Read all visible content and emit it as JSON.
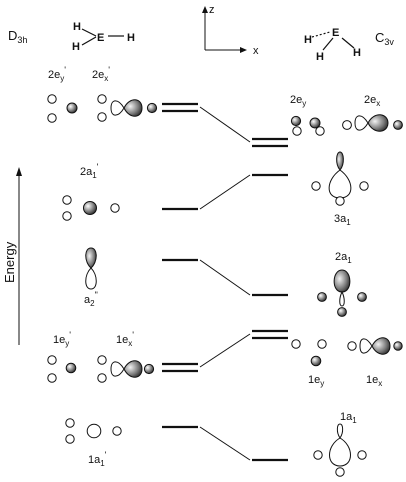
{
  "left_point_group": {
    "main": "D",
    "sub": "3h"
  },
  "right_point_group": {
    "main": "C",
    "sub": "3v"
  },
  "atoms": {
    "h": "H",
    "e": "E"
  },
  "axes": {
    "z": "z",
    "x": "x"
  },
  "energy_label": "Energy",
  "left_labels": {
    "e2_y": {
      "main": "2e",
      "sub": "y",
      "sup": "'"
    },
    "e2_x": {
      "main": "2e",
      "sub": "x",
      "sup": "'"
    },
    "a1_2": {
      "main": "2a",
      "sub": "1",
      "sup": "'"
    },
    "a2": {
      "main": "a",
      "sub": "2",
      "sup": "\""
    },
    "e1_y": {
      "main": "1e",
      "sub": "y",
      "sup": "'"
    },
    "e1_x": {
      "main": "1e",
      "sub": "x",
      "sup": "'"
    },
    "a1_1": {
      "main": "1a",
      "sub": "1",
      "sup": "'"
    }
  },
  "right_labels": {
    "e2_y": {
      "main": "2e",
      "sub": "y"
    },
    "e2_x": {
      "main": "2e",
      "sub": "x"
    },
    "a1_3": {
      "main": "3a",
      "sub": "1"
    },
    "a1_2": {
      "main": "2a",
      "sub": "1"
    },
    "e1_y": {
      "main": "1e",
      "sub": "y"
    },
    "e1_x": {
      "main": "1e",
      "sub": "x"
    },
    "a1_1": {
      "main": "1a",
      "sub": "1"
    }
  }
}
